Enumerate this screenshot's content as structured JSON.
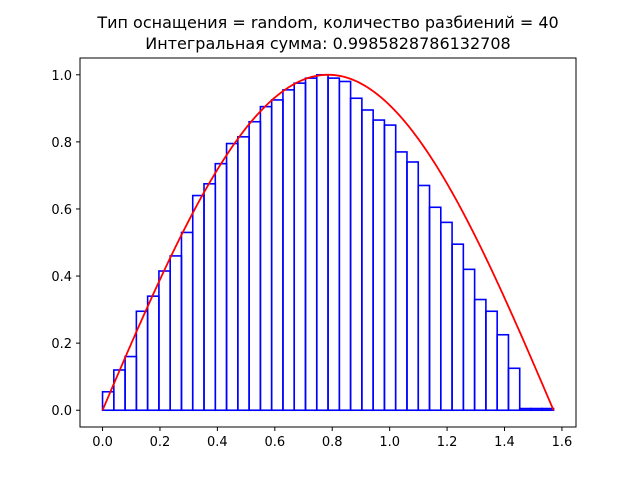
{
  "chart_data": {
    "type": "bar",
    "title_lines": [
      "Тип оснащения = random, количество разбиений = 40",
      "Интегральная сумма: 0.9985828786132708"
    ],
    "xlabel": "",
    "ylabel": "",
    "xlim": [
      -0.0785,
      1.649
    ],
    "ylim": [
      -0.05,
      1.05
    ],
    "xticks": [
      0.0,
      0.2,
      0.4,
      0.6,
      0.8,
      1.0,
      1.2,
      1.4,
      1.6
    ],
    "xtick_labels": [
      "0.0",
      "0.2",
      "0.4",
      "0.6",
      "0.8",
      "1.0",
      "1.2",
      "1.4",
      "1.6"
    ],
    "yticks": [
      0.0,
      0.2,
      0.4,
      0.6,
      0.8,
      1.0
    ],
    "ytick_labels": [
      "0.0",
      "0.2",
      "0.4",
      "0.6",
      "0.8",
      "1.0"
    ],
    "grid": false,
    "curve": {
      "function": "sin(2x)",
      "domain": [
        0,
        1.5708
      ],
      "color": "#ff0000"
    },
    "bars": {
      "color": "#0000ff",
      "x_start": 0,
      "x_end": 1.5708,
      "count": 40,
      "heights": [
        0.055,
        0.12,
        0.16,
        0.295,
        0.34,
        0.415,
        0.46,
        0.53,
        0.64,
        0.675,
        0.735,
        0.795,
        0.815,
        0.86,
        0.905,
        0.925,
        0.955,
        0.975,
        0.99,
        1.0,
        0.99,
        0.98,
        0.93,
        0.895,
        0.865,
        0.85,
        0.77,
        0.74,
        0.67,
        0.605,
        0.56,
        0.495,
        0.42,
        0.33,
        0.295,
        0.225,
        0.125,
        0.005,
        0.005,
        0.005
      ]
    }
  }
}
